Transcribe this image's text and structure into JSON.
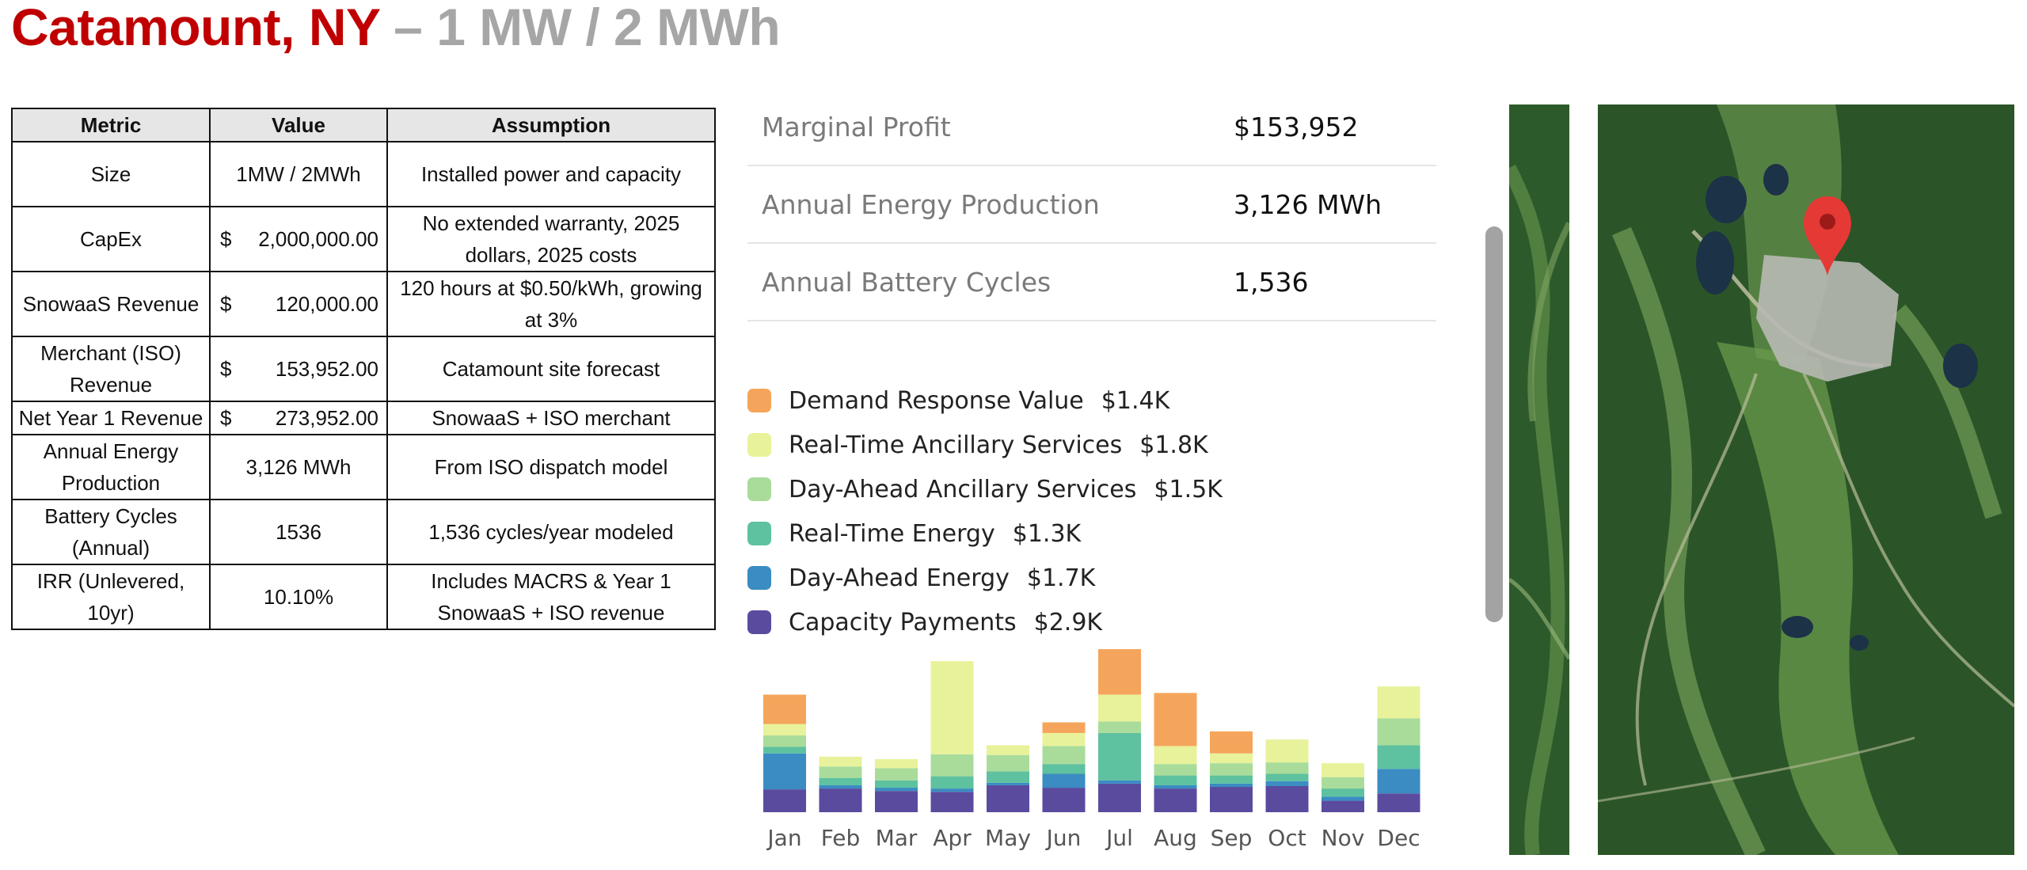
{
  "title": {
    "location": "Catamount, NY",
    "spec": " – 1 MW / 2 MWh"
  },
  "table": {
    "headers": [
      "Metric",
      "Value",
      "Assumption"
    ],
    "rows": [
      {
        "metric": "Size",
        "value": "1MW / 2MWh",
        "assumption": "Installed power and capacity"
      },
      {
        "metric": "CapEx",
        "currency": "$",
        "value": "2,000,000.00",
        "assumption": "No extended warranty, 2025 dollars, 2025 costs"
      },
      {
        "metric": "SnowaaS Revenue",
        "currency": "$",
        "value": "120,000.00",
        "assumption": "120 hours at $0.50/kWh, growing at 3%"
      },
      {
        "metric": "Merchant (ISO) Revenue",
        "currency": "$",
        "value": "153,952.00",
        "assumption": "Catamount site forecast"
      },
      {
        "metric": "Net Year 1 Revenue",
        "currency": "$",
        "value": "273,952.00",
        "assumption": "SnowaaS + ISO merchant"
      },
      {
        "metric": "Annual Energy Production",
        "value": "3,126 MWh",
        "assumption": "From ISO dispatch model"
      },
      {
        "metric": "Battery Cycles (Annual)",
        "value": "1536",
        "assumption": "1,536 cycles/year modeled"
      },
      {
        "metric": "IRR (Unlevered, 10yr)",
        "value": "10.10%",
        "assumption": "Includes MACRS & Year 1 SnowaaS + ISO revenue"
      }
    ]
  },
  "kpis": [
    {
      "label": "Marginal Profit",
      "value": "$153,952"
    },
    {
      "label": "Annual Energy Production",
      "value": "3,126 MWh"
    },
    {
      "label": "Annual Battery Cycles",
      "value": "1,536"
    }
  ],
  "legend": [
    {
      "name": "Demand Response Value",
      "value": "$1.4K",
      "color": "#f5a55b"
    },
    {
      "name": "Real-Time Ancillary Services",
      "value": "$1.8K",
      "color": "#e8f29a"
    },
    {
      "name": "Day-Ahead Ancillary Services",
      "value": "$1.5K",
      "color": "#a9dc9a"
    },
    {
      "name": "Real-Time Energy",
      "value": "$1.3K",
      "color": "#5ec19f"
    },
    {
      "name": "Day-Ahead Energy",
      "value": "$1.7K",
      "color": "#3a8cc2"
    },
    {
      "name": "Capacity Payments",
      "value": "$2.9K",
      "color": "#5b4b9e"
    }
  ],
  "chart_data": {
    "type": "bar",
    "stacked": true,
    "categories": [
      "Jan",
      "Feb",
      "Mar",
      "Apr",
      "May",
      "Jun",
      "Jul",
      "Aug",
      "Sep",
      "Oct",
      "Nov",
      "Dec"
    ],
    "series": [
      {
        "name": "Capacity Payments",
        "values": [
          28,
          29,
          26,
          25,
          33,
          30,
          35,
          29,
          31,
          32,
          14,
          23
        ]
      },
      {
        "name": "Day-Ahead Energy",
        "values": [
          44,
          4,
          4,
          4,
          3,
          17,
          4,
          4,
          4,
          6,
          5,
          30
        ]
      },
      {
        "name": "Real-Time Energy",
        "values": [
          8,
          9,
          9,
          15,
          14,
          12,
          58,
          12,
          10,
          9,
          10,
          29
        ]
      },
      {
        "name": "Day-Ahead Ancillary Services",
        "values": [
          14,
          14,
          15,
          27,
          20,
          22,
          14,
          14,
          15,
          14,
          14,
          33
        ]
      },
      {
        "name": "Real-Time Ancillary Services",
        "values": [
          14,
          12,
          11,
          114,
          12,
          16,
          33,
          22,
          12,
          28,
          17,
          39
        ]
      },
      {
        "name": "Demand Response Value",
        "values": [
          36,
          0,
          0,
          0,
          0,
          13,
          65,
          65,
          27,
          0,
          0,
          0
        ]
      }
    ],
    "ymax": 190
  },
  "map": {
    "pin_color": "#e53935",
    "forest_color": "#2d5a2a"
  }
}
